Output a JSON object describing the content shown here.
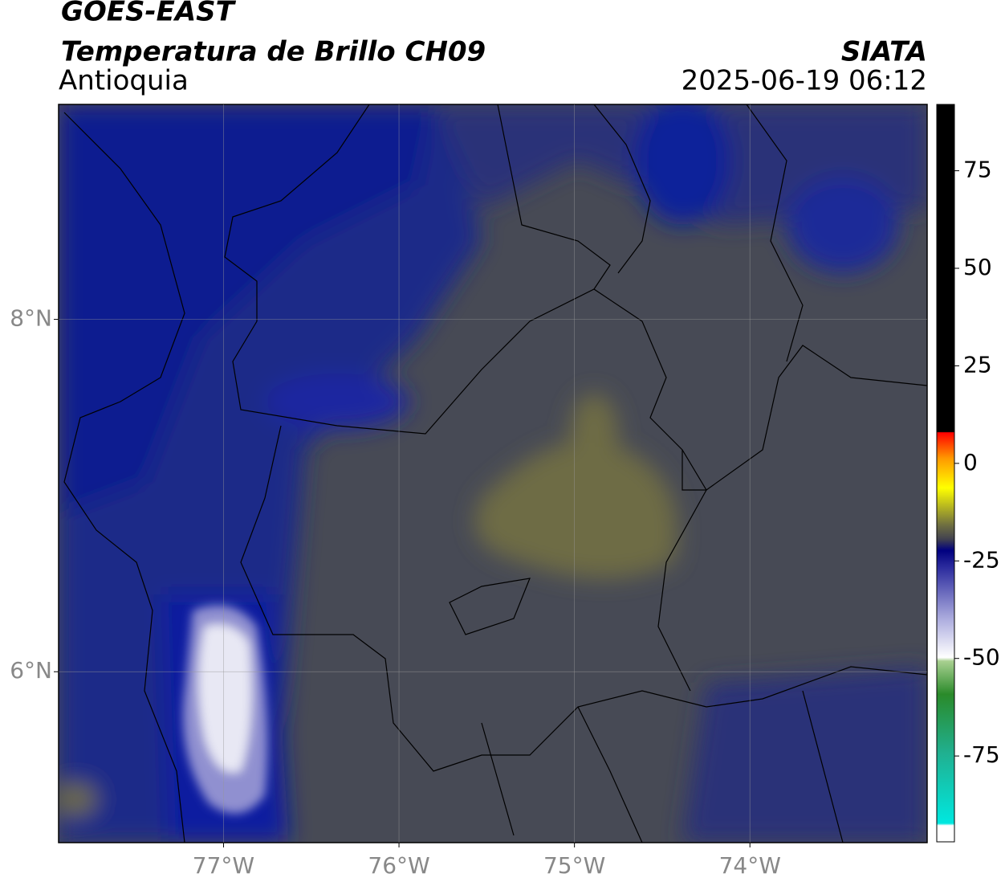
{
  "header": {
    "title": "GOES-EAST",
    "product": "Temperatura de Brillo CH09",
    "region": "Antioquia",
    "agency": "SIATA",
    "datetime": "2025-06-19 06:12"
  },
  "map": {
    "xlim": [
      -77.94,
      -72.99
    ],
    "ylim": [
      5.03,
      9.22
    ],
    "lat_labels": [
      {
        "value": 8,
        "label": "8°N"
      },
      {
        "value": 6,
        "label": "6°N"
      }
    ],
    "lon_labels": [
      {
        "value": -77,
        "label": "77°W"
      },
      {
        "value": -76,
        "label": "76°W"
      },
      {
        "value": -75,
        "label": "75°W"
      },
      {
        "value": -74,
        "label": "74°W"
      }
    ]
  },
  "colorbar": {
    "lim": [
      -97,
      92
    ],
    "ticks": [
      75,
      50,
      25,
      0,
      -25,
      -50,
      -75
    ]
  }
}
